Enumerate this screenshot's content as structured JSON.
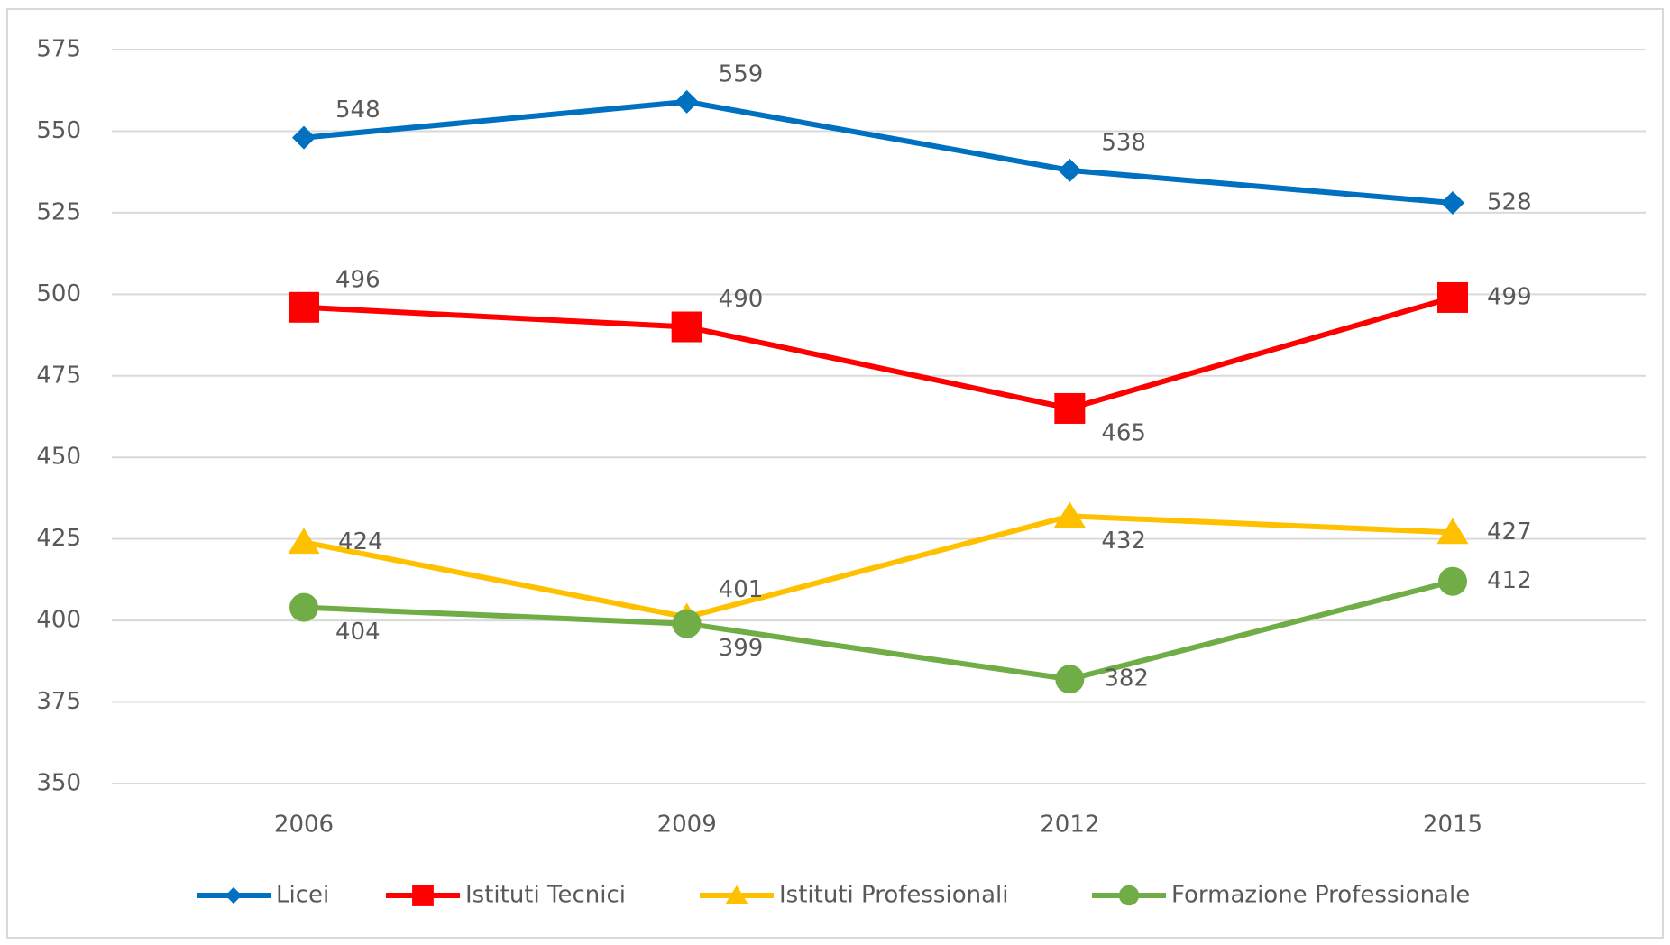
{
  "chart_data": {
    "type": "line",
    "categories": [
      "2006",
      "2009",
      "2012",
      "2015"
    ],
    "series": [
      {
        "name": "Licei",
        "color": "#0070c0",
        "marker": "diamond",
        "values": [
          548,
          559,
          538,
          528
        ]
      },
      {
        "name": "Istituti Tecnici",
        "color": "#ff0000",
        "marker": "square",
        "values": [
          496,
          490,
          465,
          499
        ]
      },
      {
        "name": "Istituti Professionali",
        "color": "#ffc000",
        "marker": "triangle",
        "values": [
          424,
          401,
          432,
          427
        ]
      },
      {
        "name": "Formazione Professionale",
        "color": "#70ad47",
        "marker": "circle",
        "values": [
          404,
          399,
          382,
          412
        ]
      }
    ],
    "ylim": [
      350,
      575
    ],
    "yticks": [
      350,
      375,
      400,
      425,
      450,
      475,
      500,
      525,
      550,
      575
    ],
    "grid": true,
    "legend": "bottom"
  }
}
